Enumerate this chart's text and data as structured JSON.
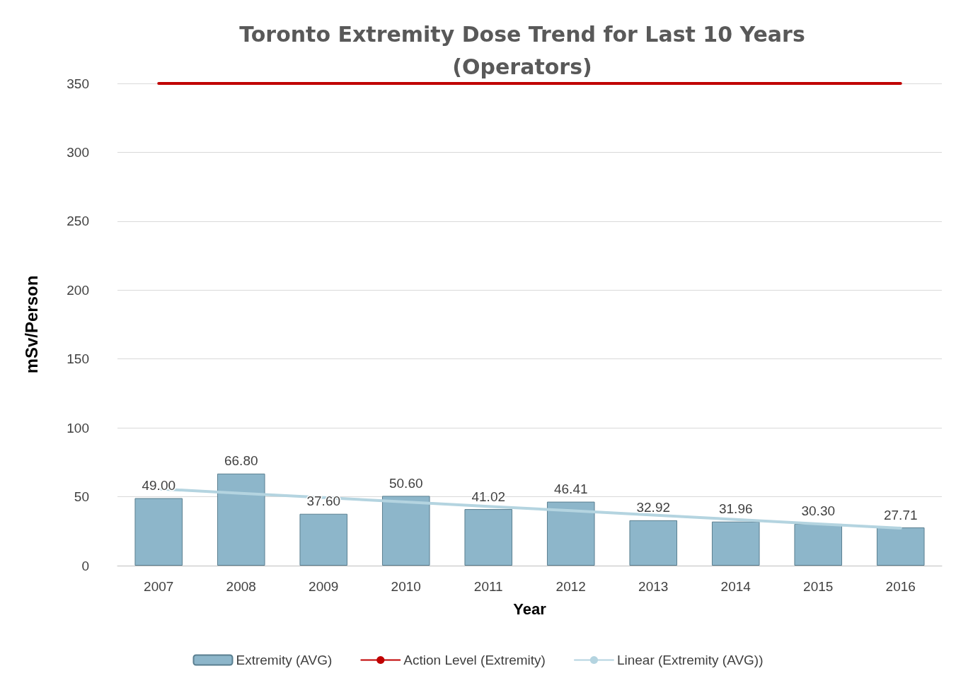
{
  "chart_data": {
    "type": "bar",
    "title": "Toronto Extremity Dose Trend for Last 10 Years\n(Operators)",
    "xlabel": "Year",
    "ylabel": "mSv/Person",
    "categories": [
      "2007",
      "2008",
      "2009",
      "2010",
      "2011",
      "2012",
      "2013",
      "2014",
      "2015",
      "2016"
    ],
    "series": [
      {
        "name": "Extremity (AVG)",
        "color": "#8db6ca",
        "values": [
          49.0,
          66.8,
          37.6,
          50.6,
          41.02,
          46.41,
          32.92,
          31.96,
          30.3,
          27.71
        ],
        "value_labels": [
          "49.00",
          "66.80",
          "37.60",
          "50.60",
          "41.02",
          "46.41",
          "32.92",
          "31.96",
          "30.30",
          "27.71"
        ]
      },
      {
        "name": "Action Level (Extremity)",
        "type": "line",
        "color": "#c00000",
        "values": [
          350,
          350,
          350,
          350,
          350,
          350,
          350,
          350,
          350,
          350
        ]
      },
      {
        "name": "Linear (Extremity (AVG))",
        "type": "line",
        "color": "#b4d4e0",
        "values": [
          55.7,
          52.5,
          49.4,
          46.2,
          43.0,
          39.9,
          36.7,
          33.5,
          30.3,
          27.2
        ]
      }
    ],
    "ylim": [
      0,
      350
    ],
    "yticks": [
      0,
      50,
      100,
      150,
      200,
      250,
      300,
      350
    ],
    "grid": "y",
    "legend": "bottom"
  }
}
